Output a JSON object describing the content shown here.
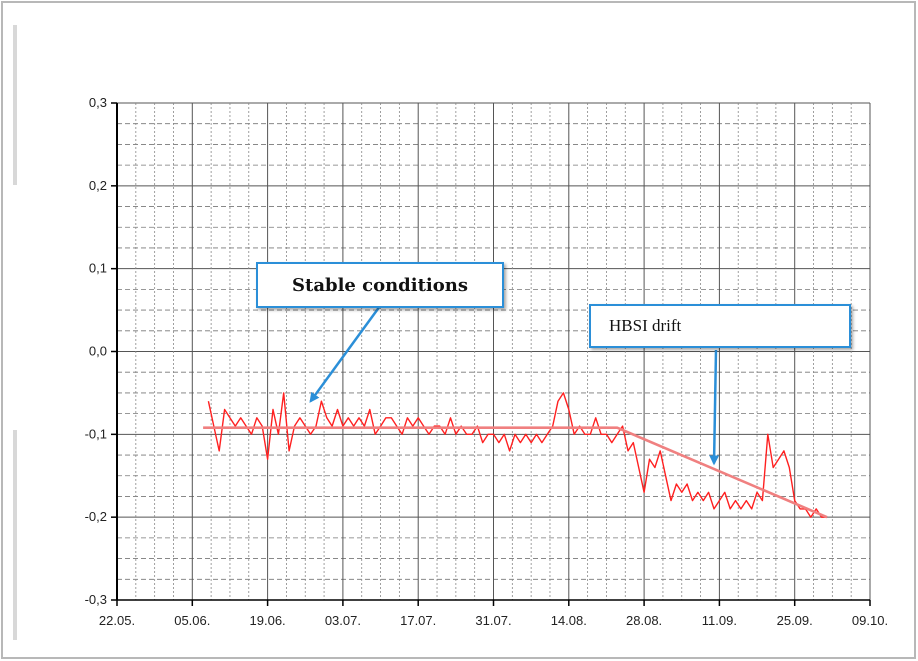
{
  "chart_data": {
    "type": "line",
    "title": "",
    "xlabel": "",
    "ylabel": "",
    "ylim": [
      -0.3,
      0.3
    ],
    "y_ticks": [
      0.3,
      0.2,
      0.1,
      0.0,
      -0.1,
      -0.2,
      -0.3
    ],
    "y_tick_labels": [
      "0,3",
      "0,2",
      "0,1",
      "0,0",
      "-0,1",
      "-0,2",
      "-0,3"
    ],
    "x_tick_labels": [
      "22.05.",
      "05.06.",
      "19.06.",
      "03.07.",
      "17.07.",
      "31.07.",
      "14.08.",
      "28.08.",
      "11.09.",
      "25.09.",
      "09.10."
    ],
    "xlim_days": [
      0,
      140
    ],
    "grid": true,
    "legend": "none",
    "series": [
      {
        "color": "#ff2020",
        "x": [
          17,
          18,
          19,
          20,
          21,
          22,
          23,
          24,
          25,
          26,
          27,
          28,
          29,
          30,
          31,
          32,
          33,
          34,
          35,
          36,
          37,
          38,
          39,
          40,
          41,
          42,
          43,
          44,
          45,
          46,
          47,
          48,
          49,
          50,
          51,
          52,
          53,
          54,
          55,
          56,
          57,
          58,
          59,
          60,
          61,
          62,
          63,
          64,
          65,
          66,
          67,
          68,
          69,
          70,
          71,
          72,
          73,
          74,
          75,
          76,
          77,
          78,
          79,
          80,
          81,
          82,
          83,
          84,
          85,
          86,
          87,
          88,
          89,
          90,
          91,
          92,
          93,
          94,
          95,
          96,
          97,
          98,
          99,
          100,
          101,
          102,
          103,
          104,
          105,
          106,
          107,
          108,
          109,
          110,
          111,
          112,
          113,
          114,
          115,
          116,
          117,
          118,
          119,
          120,
          121,
          122,
          123,
          124,
          125,
          126,
          127,
          128,
          129,
          130,
          131,
          132
        ],
        "y": [
          -0.06,
          -0.09,
          -0.12,
          -0.07,
          -0.08,
          -0.09,
          -0.08,
          -0.09,
          -0.1,
          -0.08,
          -0.09,
          -0.13,
          -0.07,
          -0.1,
          -0.05,
          -0.12,
          -0.09,
          -0.08,
          -0.09,
          -0.1,
          -0.09,
          -0.06,
          -0.08,
          -0.09,
          -0.07,
          -0.09,
          -0.08,
          -0.09,
          -0.08,
          -0.09,
          -0.07,
          -0.1,
          -0.09,
          -0.08,
          -0.08,
          -0.09,
          -0.1,
          -0.08,
          -0.09,
          -0.08,
          -0.09,
          -0.1,
          -0.09,
          -0.09,
          -0.1,
          -0.08,
          -0.1,
          -0.09,
          -0.1,
          -0.1,
          -0.09,
          -0.11,
          -0.1,
          -0.1,
          -0.11,
          -0.1,
          -0.12,
          -0.1,
          -0.11,
          -0.1,
          -0.11,
          -0.1,
          -0.11,
          -0.1,
          -0.09,
          -0.06,
          -0.05,
          -0.07,
          -0.1,
          -0.09,
          -0.1,
          -0.1,
          -0.08,
          -0.1,
          -0.1,
          -0.11,
          -0.1,
          -0.09,
          -0.12,
          -0.11,
          -0.14,
          -0.17,
          -0.13,
          -0.14,
          -0.12,
          -0.15,
          -0.18,
          -0.16,
          -0.17,
          -0.16,
          -0.18,
          -0.17,
          -0.18,
          -0.17,
          -0.19,
          -0.18,
          -0.17,
          -0.19,
          -0.18,
          -0.19,
          -0.18,
          -0.19,
          -0.17,
          -0.18,
          -0.1,
          -0.14,
          -0.13,
          -0.12,
          -0.14,
          -0.18,
          -0.19,
          -0.19,
          -0.2,
          -0.19,
          -0.2,
          -0.2
        ]
      },
      {
        "color": "#f08080",
        "x": [
          16,
          93,
          132
        ],
        "y": [
          -0.092,
          -0.092,
          -0.2
        ]
      }
    ],
    "annotations": [
      {
        "text": "Stable conditions",
        "target": {
          "x": 36,
          "y": -0.06
        }
      },
      {
        "text": "HBSI drift",
        "target": {
          "x": 111,
          "y": -0.135
        }
      }
    ]
  }
}
